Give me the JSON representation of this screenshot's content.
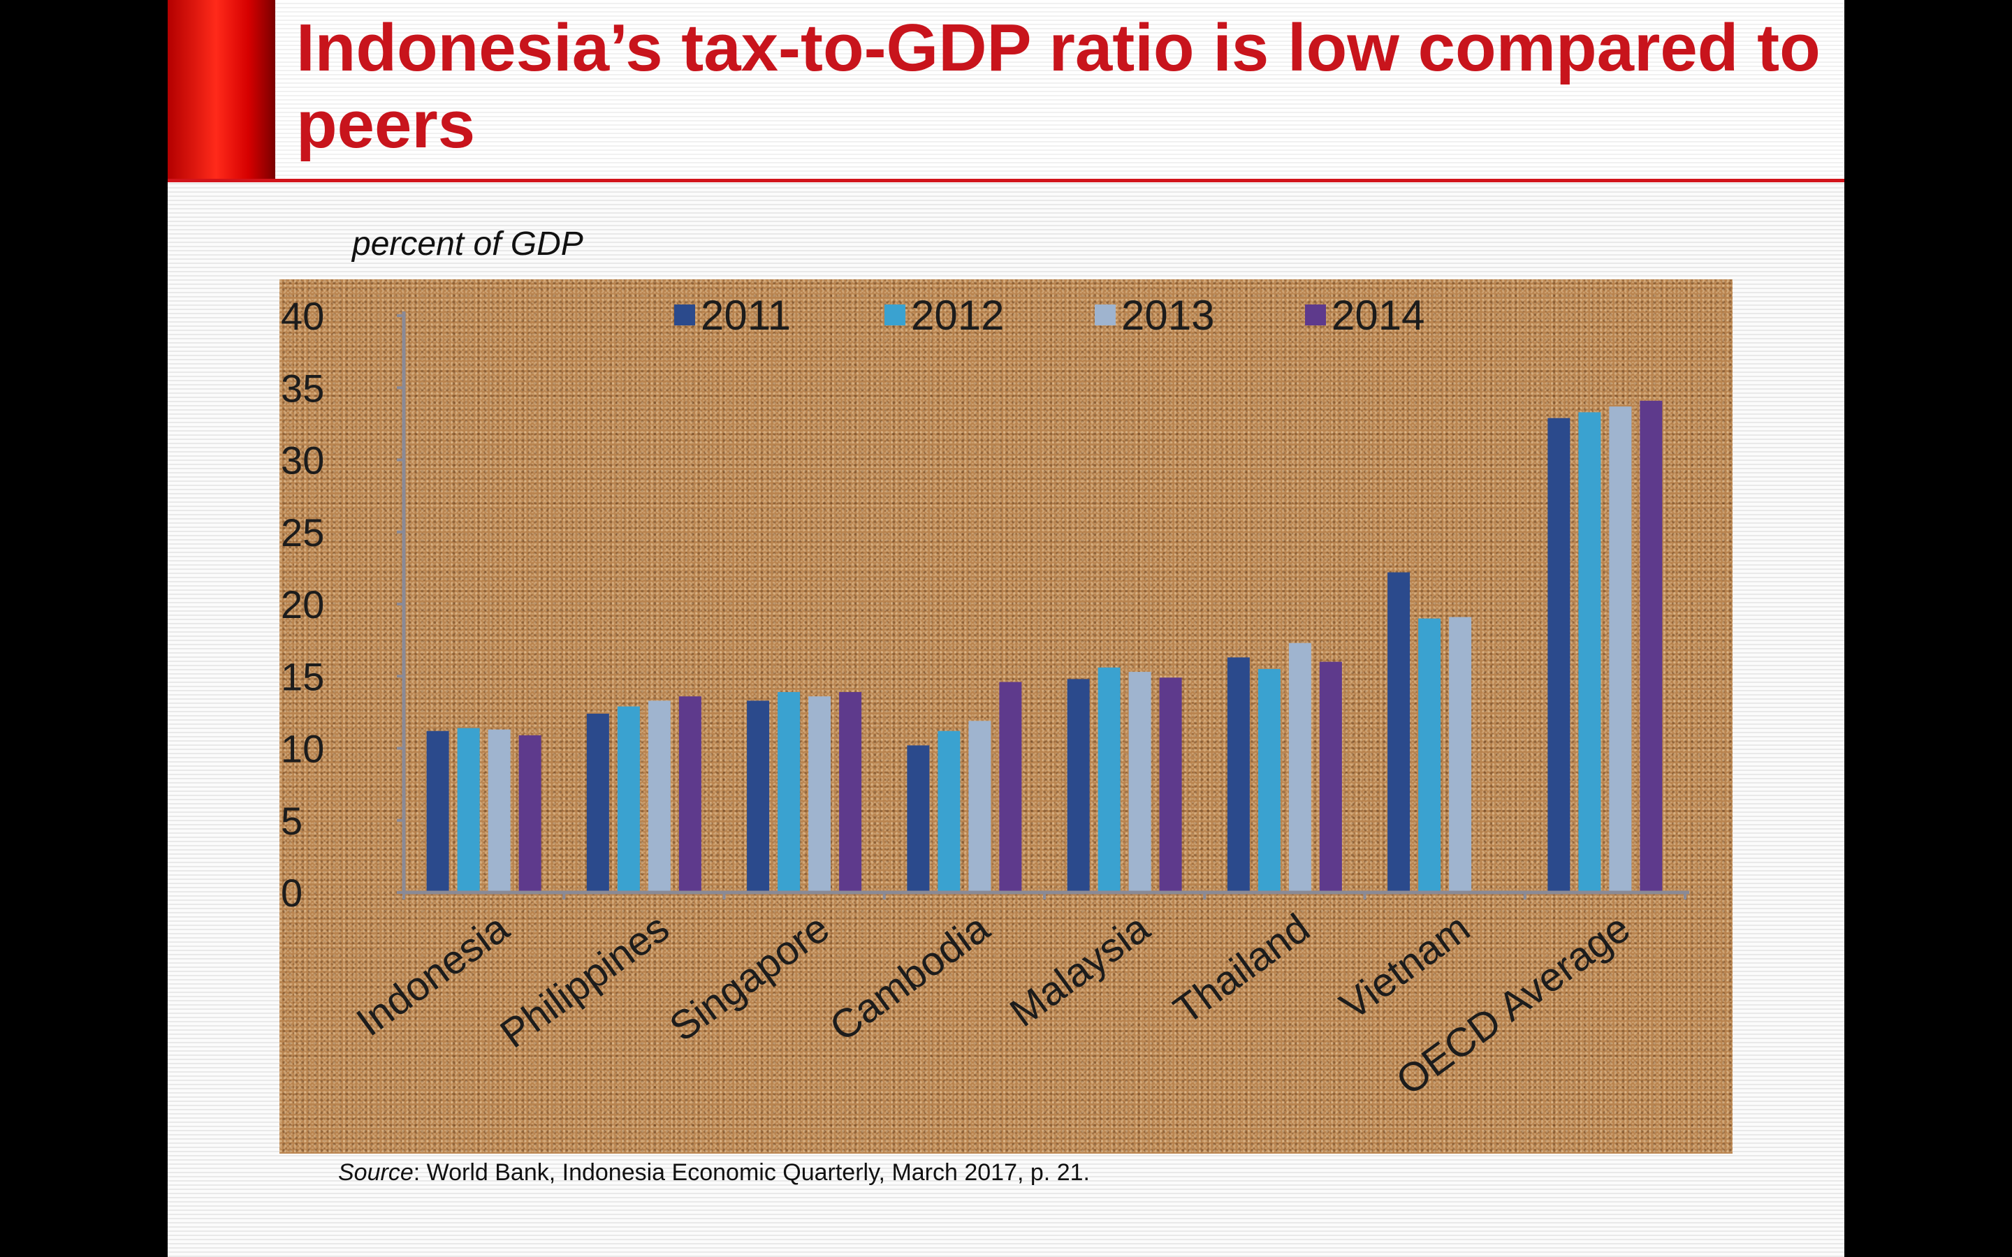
{
  "slide": {
    "title": "Indonesia’s tax-to-GDP ratio is low compared to peers",
    "unit_label": "percent of GDP",
    "source_label": "Source",
    "source_text": ": World Bank, Indonesia Economic Quarterly, March 2017, p. 21."
  },
  "colors": {
    "title": "#c8141c",
    "axis": "#8a8a96",
    "series": [
      "#2b4a8c",
      "#3aa2d0",
      "#9fb4cf",
      "#5e3a8c"
    ]
  },
  "chart_data": {
    "type": "bar",
    "title": "",
    "xlabel": "",
    "ylabel": "percent of GDP",
    "ylim": [
      0,
      40
    ],
    "yticks": [
      0,
      5,
      10,
      15,
      20,
      25,
      30,
      35,
      40
    ],
    "grid": false,
    "legend_position": "top",
    "categories": [
      "Indonesia",
      "Philippines",
      "Singapore",
      "Cambodia",
      "Malaysia",
      "Thailand",
      "Vietnam",
      "OECD Average"
    ],
    "series": [
      {
        "name": "2011",
        "values": [
          11.2,
          12.4,
          13.3,
          10.2,
          14.8,
          16.3,
          22.2,
          32.9
        ]
      },
      {
        "name": "2012",
        "values": [
          11.4,
          12.9,
          13.9,
          11.2,
          15.6,
          15.5,
          19.0,
          33.3
        ]
      },
      {
        "name": "2013",
        "values": [
          11.3,
          13.3,
          13.6,
          11.9,
          15.3,
          17.3,
          19.1,
          33.7
        ]
      },
      {
        "name": "2014",
        "values": [
          10.9,
          13.6,
          13.9,
          14.6,
          14.9,
          16.0,
          null,
          34.1
        ]
      }
    ]
  }
}
